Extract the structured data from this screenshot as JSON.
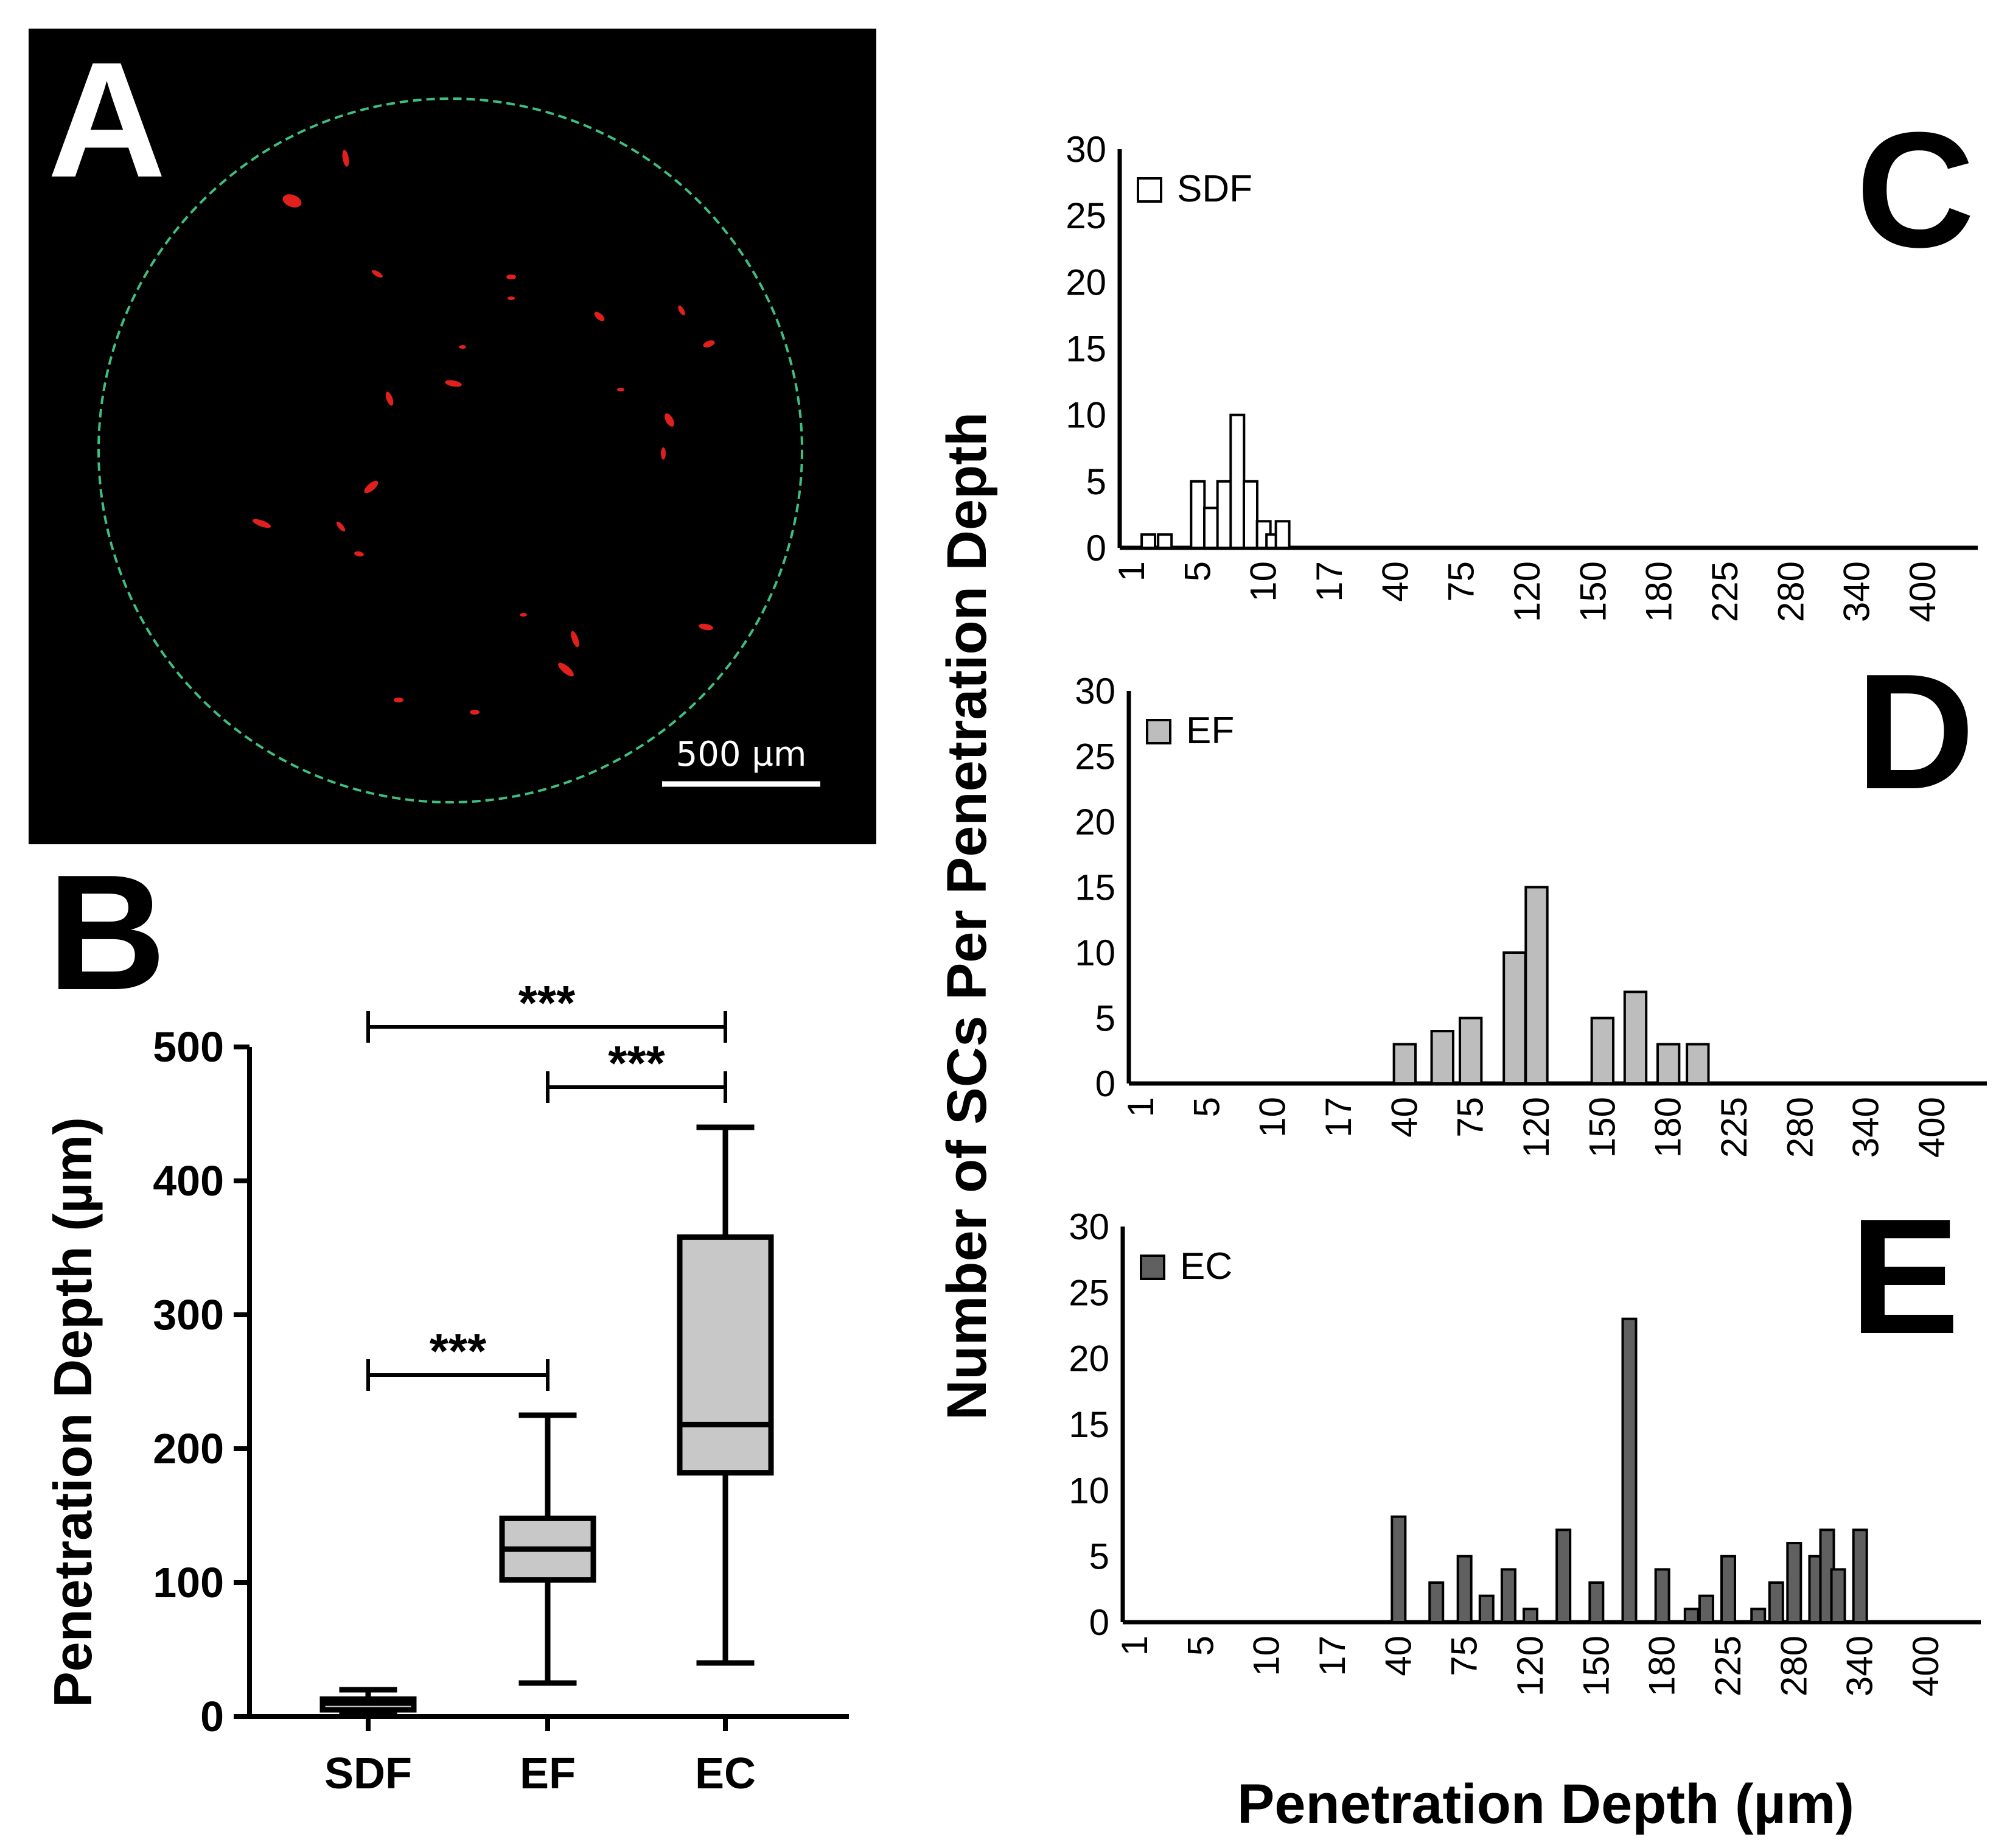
{
  "panel_labels": {
    "a": "A",
    "b": "B",
    "c": "C",
    "d": "D",
    "e": "E"
  },
  "micrograph": {
    "scale_bar_label": "500 µm",
    "background": "#000000",
    "ring_color": "#3fbf7f",
    "cell_color": "#e0201c"
  },
  "colors": {
    "SDF": "#ffffff",
    "EF": "#bdbdbd",
    "EC": "#606060",
    "box_fill": "#c8c8c8"
  },
  "chart_data": [
    {
      "type": "box",
      "panel": "B",
      "ylabel": "Penetration Depth (µm)",
      "xlabel": "",
      "categories": [
        "SDF",
        "EF",
        "EC"
      ],
      "ylim": [
        0,
        500
      ],
      "yticks": [
        "0",
        "100",
        "200",
        "300",
        "400",
        "500"
      ],
      "boxes": [
        {
          "name": "SDF",
          "min": 2,
          "q1": 5,
          "median": 10,
          "q3": 13,
          "max": 20
        },
        {
          "name": "EF",
          "min": 25,
          "q1": 102,
          "median": 125,
          "q3": 148,
          "max": 225
        },
        {
          "name": "EC",
          "min": 40,
          "q1": 182,
          "median": 218,
          "q3": 358,
          "max": 440
        }
      ],
      "significance": [
        {
          "from": "SDF",
          "to": "EC",
          "y": 515,
          "label": "***"
        },
        {
          "from": "EF",
          "to": "EC",
          "y": 470,
          "label": "***"
        },
        {
          "from": "SDF",
          "to": "EF",
          "y": 255,
          "label": "***"
        }
      ]
    },
    {
      "type": "bar",
      "panel": "C",
      "legend": "SDF",
      "x": [
        "1",
        "2",
        "3",
        "4",
        "5",
        "6",
        "7",
        "8",
        "9",
        "10",
        "11",
        "12",
        "13",
        "14",
        "15",
        "16",
        "17",
        "18",
        "19",
        "20",
        "30",
        "40",
        "50",
        "60",
        "75",
        "90",
        "105",
        "120",
        "135",
        "150",
        "165",
        "180",
        "200",
        "225",
        "250",
        "280",
        "300",
        "320",
        "340",
        "360",
        "380",
        "400",
        "420",
        "440"
      ],
      "values": [
        0,
        1,
        1,
        0,
        5,
        3,
        5,
        10,
        5,
        2,
        1,
        2,
        0,
        0,
        0,
        0,
        0,
        0,
        0,
        0,
        0,
        0,
        0,
        0,
        0,
        0,
        0,
        0,
        0,
        0,
        0,
        0,
        0,
        0,
        0,
        0,
        0,
        0,
        0,
        0,
        0,
        0,
        0,
        0
      ],
      "xticks": [
        "1",
        "5",
        "10",
        "17",
        "40",
        "75",
        "120",
        "150",
        "180",
        "225",
        "280",
        "340",
        "400"
      ],
      "ylim": [
        0,
        30
      ],
      "yticks": [
        "0",
        "5",
        "10",
        "15",
        "20",
        "25",
        "30"
      ]
    },
    {
      "type": "bar",
      "panel": "D",
      "legend": "EF",
      "x": [
        "1",
        "5",
        "10",
        "17",
        "30",
        "40",
        "60",
        "75",
        "105",
        "120",
        "150",
        "165",
        "180",
        "200",
        "225",
        "250",
        "280",
        "320",
        "340",
        "360",
        "400",
        "440"
      ],
      "values": [
        0,
        0,
        0,
        0,
        0,
        3,
        4,
        5,
        10,
        15,
        5,
        7,
        3,
        3,
        0,
        0,
        0,
        0,
        0,
        0,
        0,
        0
      ],
      "xticks": [
        "1",
        "5",
        "10",
        "17",
        "40",
        "75",
        "120",
        "150",
        "180",
        "225",
        "280",
        "340",
        "400"
      ],
      "ylim": [
        0,
        30
      ],
      "yticks": [
        "0",
        "5",
        "10",
        "15",
        "20",
        "25",
        "30"
      ]
    },
    {
      "type": "bar",
      "panel": "E",
      "legend": "EC",
      "x": [
        "1",
        "5",
        "10",
        "17",
        "30",
        "40",
        "60",
        "75",
        "90",
        "105",
        "120",
        "135",
        "150",
        "165",
        "180",
        "200",
        "210",
        "225",
        "250",
        "265",
        "280",
        "300",
        "310",
        "320",
        "340",
        "360",
        "380",
        "400",
        "420",
        "440"
      ],
      "values": [
        0,
        0,
        0,
        0,
        0,
        8,
        3,
        5,
        2,
        4,
        1,
        7,
        3,
        23,
        4,
        1,
        2,
        5,
        1,
        3,
        6,
        5,
        7,
        4,
        7,
        0,
        0,
        0,
        0,
        0
      ],
      "xticks": [
        "1",
        "5",
        "10",
        "17",
        "40",
        "75",
        "120",
        "150",
        "180",
        "225",
        "280",
        "340",
        "400"
      ],
      "ylim": [
        0,
        30
      ],
      "yticks": [
        "0",
        "5",
        "10",
        "15",
        "20",
        "25",
        "30"
      ]
    }
  ],
  "shared_ylabel": "Number of SCs Per Penetration Depth",
  "shared_xlabel": "Penetration Depth (µm)"
}
